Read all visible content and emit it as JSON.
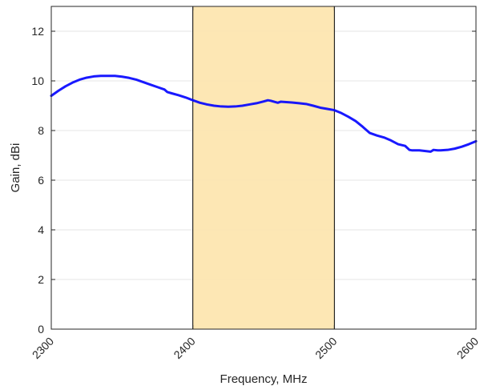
{
  "chart_data": {
    "type": "line",
    "title": "",
    "xlabel": "Frequency, MHz",
    "ylabel": "Gain, dBi",
    "xlim": [
      2300,
      2600
    ],
    "ylim": [
      0,
      13
    ],
    "x_ticks": [
      2300,
      2400,
      2500,
      2600
    ],
    "y_ticks": [
      0,
      2,
      4,
      6,
      8,
      10,
      12
    ],
    "grid": true,
    "legend": "none",
    "highlight_band": {
      "x_start": 2400,
      "x_end": 2500,
      "color": "#FDE6B0",
      "edge_color": "#000000"
    },
    "series": [
      {
        "color": "#0000FF",
        "x": [
          2300,
          2305,
          2310,
          2315,
          2320,
          2325,
          2330,
          2335,
          2340,
          2345,
          2350,
          2355,
          2360,
          2365,
          2370,
          2375,
          2380,
          2382,
          2385,
          2390,
          2395,
          2400,
          2405,
          2410,
          2415,
          2420,
          2425,
          2430,
          2435,
          2440,
          2445,
          2450,
          2453,
          2455,
          2458,
          2460,
          2462,
          2465,
          2470,
          2475,
          2480,
          2485,
          2490,
          2495,
          2500,
          2505,
          2510,
          2515,
          2520,
          2525,
          2530,
          2535,
          2540,
          2545,
          2550,
          2553,
          2555,
          2560,
          2565,
          2568,
          2570,
          2573,
          2575,
          2580,
          2585,
          2590,
          2595,
          2600
        ],
        "y": [
          9.4,
          9.6,
          9.78,
          9.93,
          10.05,
          10.13,
          10.18,
          10.2,
          10.2,
          10.2,
          10.17,
          10.12,
          10.05,
          9.95,
          9.85,
          9.75,
          9.65,
          9.55,
          9.5,
          9.42,
          9.33,
          9.22,
          9.12,
          9.05,
          9.0,
          8.97,
          8.96,
          8.97,
          9.0,
          9.05,
          9.1,
          9.17,
          9.22,
          9.2,
          9.15,
          9.12,
          9.16,
          9.15,
          9.13,
          9.1,
          9.07,
          9.0,
          8.92,
          8.87,
          8.82,
          8.7,
          8.55,
          8.38,
          8.15,
          7.9,
          7.8,
          7.72,
          7.6,
          7.45,
          7.38,
          7.22,
          7.2,
          7.2,
          7.17,
          7.15,
          7.22,
          7.2,
          7.2,
          7.22,
          7.27,
          7.35,
          7.45,
          7.57
        ]
      }
    ]
  }
}
